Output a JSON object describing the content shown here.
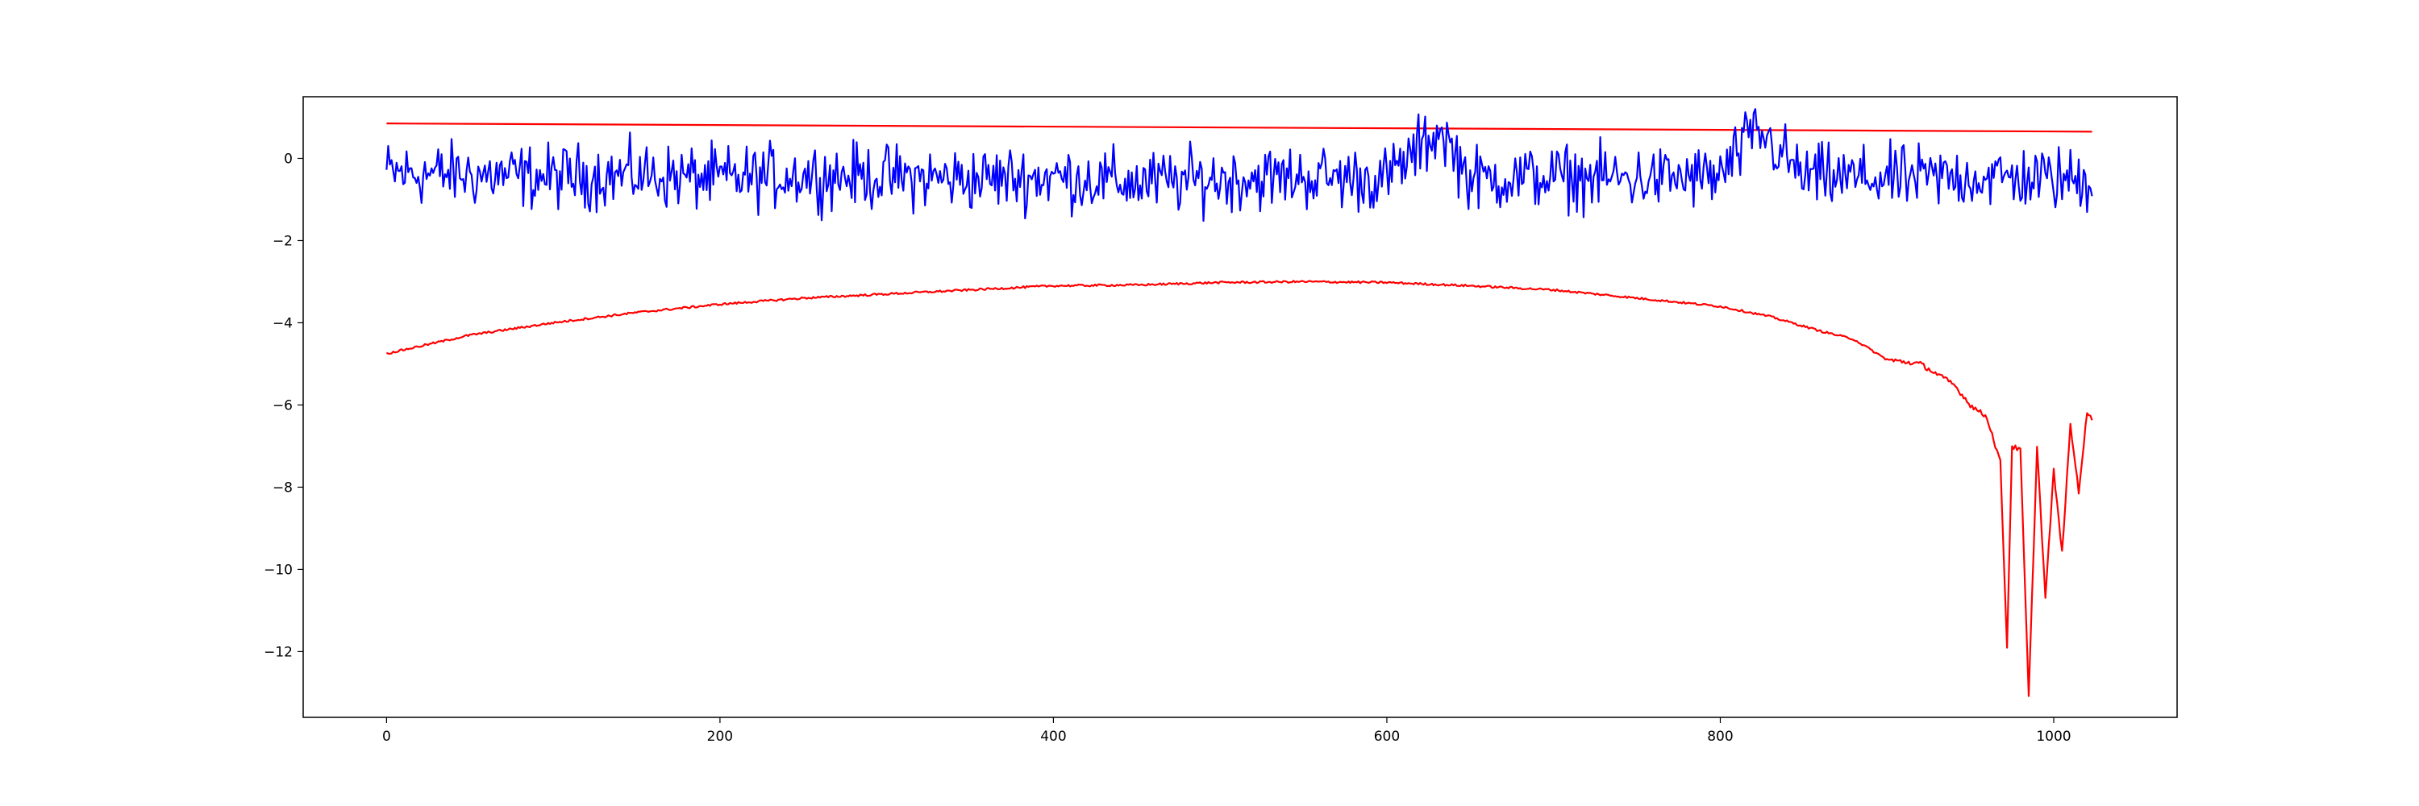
{
  "chart_data": {
    "type": "line",
    "title": "",
    "xlabel": "",
    "ylabel": "",
    "xlim": [
      -50,
      1074
    ],
    "ylim": [
      -13.6,
      1.5
    ],
    "grid": false,
    "legend": "none",
    "x_ticks": [
      0,
      200,
      400,
      600,
      800,
      1000
    ],
    "y_ticks": [
      0,
      -2,
      -4,
      -6,
      -8,
      -10,
      -12
    ],
    "x_tick_labels": [
      "0",
      "200",
      "400",
      "600",
      "800",
      "1000"
    ],
    "y_tick_labels": [
      "0",
      "−2",
      "−4",
      "−6",
      "−8",
      "−10",
      "−12"
    ],
    "series": [
      {
        "color": "#ff0000",
        "description_key": "upper",
        "x": [
          0,
          1023
        ],
        "y": [
          0.85,
          0.65
        ]
      },
      {
        "color": "#0000ff",
        "description_key": "noisy",
        "x": [
          0,
          50,
          100,
          150,
          200,
          250,
          300,
          350,
          400,
          450,
          500,
          550,
          600,
          632,
          650,
          700,
          750,
          800,
          822,
          850,
          900,
          950,
          1000,
          1023
        ],
        "y": [
          -0.35,
          -0.4,
          -0.45,
          -0.4,
          -0.5,
          -0.4,
          -0.45,
          -0.5,
          -0.45,
          -0.6,
          -0.5,
          -0.45,
          -0.5,
          0.7,
          -0.5,
          -0.45,
          -0.5,
          -0.45,
          0.7,
          -0.45,
          -0.5,
          -0.45,
          -0.5,
          -0.55
        ],
        "spread": 0.55
      },
      {
        "color": "#ff0000",
        "description_key": "lower",
        "x": [
          0,
          50,
          100,
          150,
          200,
          250,
          300,
          350,
          400,
          450,
          500,
          550,
          600,
          650,
          700,
          750,
          800,
          830,
          860,
          880,
          900,
          920,
          940,
          950,
          960,
          968,
          972,
          975,
          980,
          985,
          990,
          995,
          1000,
          1005,
          1010,
          1015,
          1020,
          1023
        ],
        "y": [
          -4.75,
          -4.3,
          -4.0,
          -3.75,
          -3.55,
          -3.4,
          -3.3,
          -3.2,
          -3.1,
          -3.08,
          -3.02,
          -3.0,
          -3.02,
          -3.1,
          -3.2,
          -3.4,
          -3.6,
          -3.85,
          -4.2,
          -4.4,
          -4.9,
          -5.0,
          -5.5,
          -6.0,
          -6.3,
          -7.4,
          -11.9,
          -7.0,
          -7.1,
          -13.1,
          -7.0,
          -10.7,
          -7.6,
          -9.6,
          -6.5,
          -8.1,
          -6.2,
          -6.35
        ]
      }
    ]
  }
}
